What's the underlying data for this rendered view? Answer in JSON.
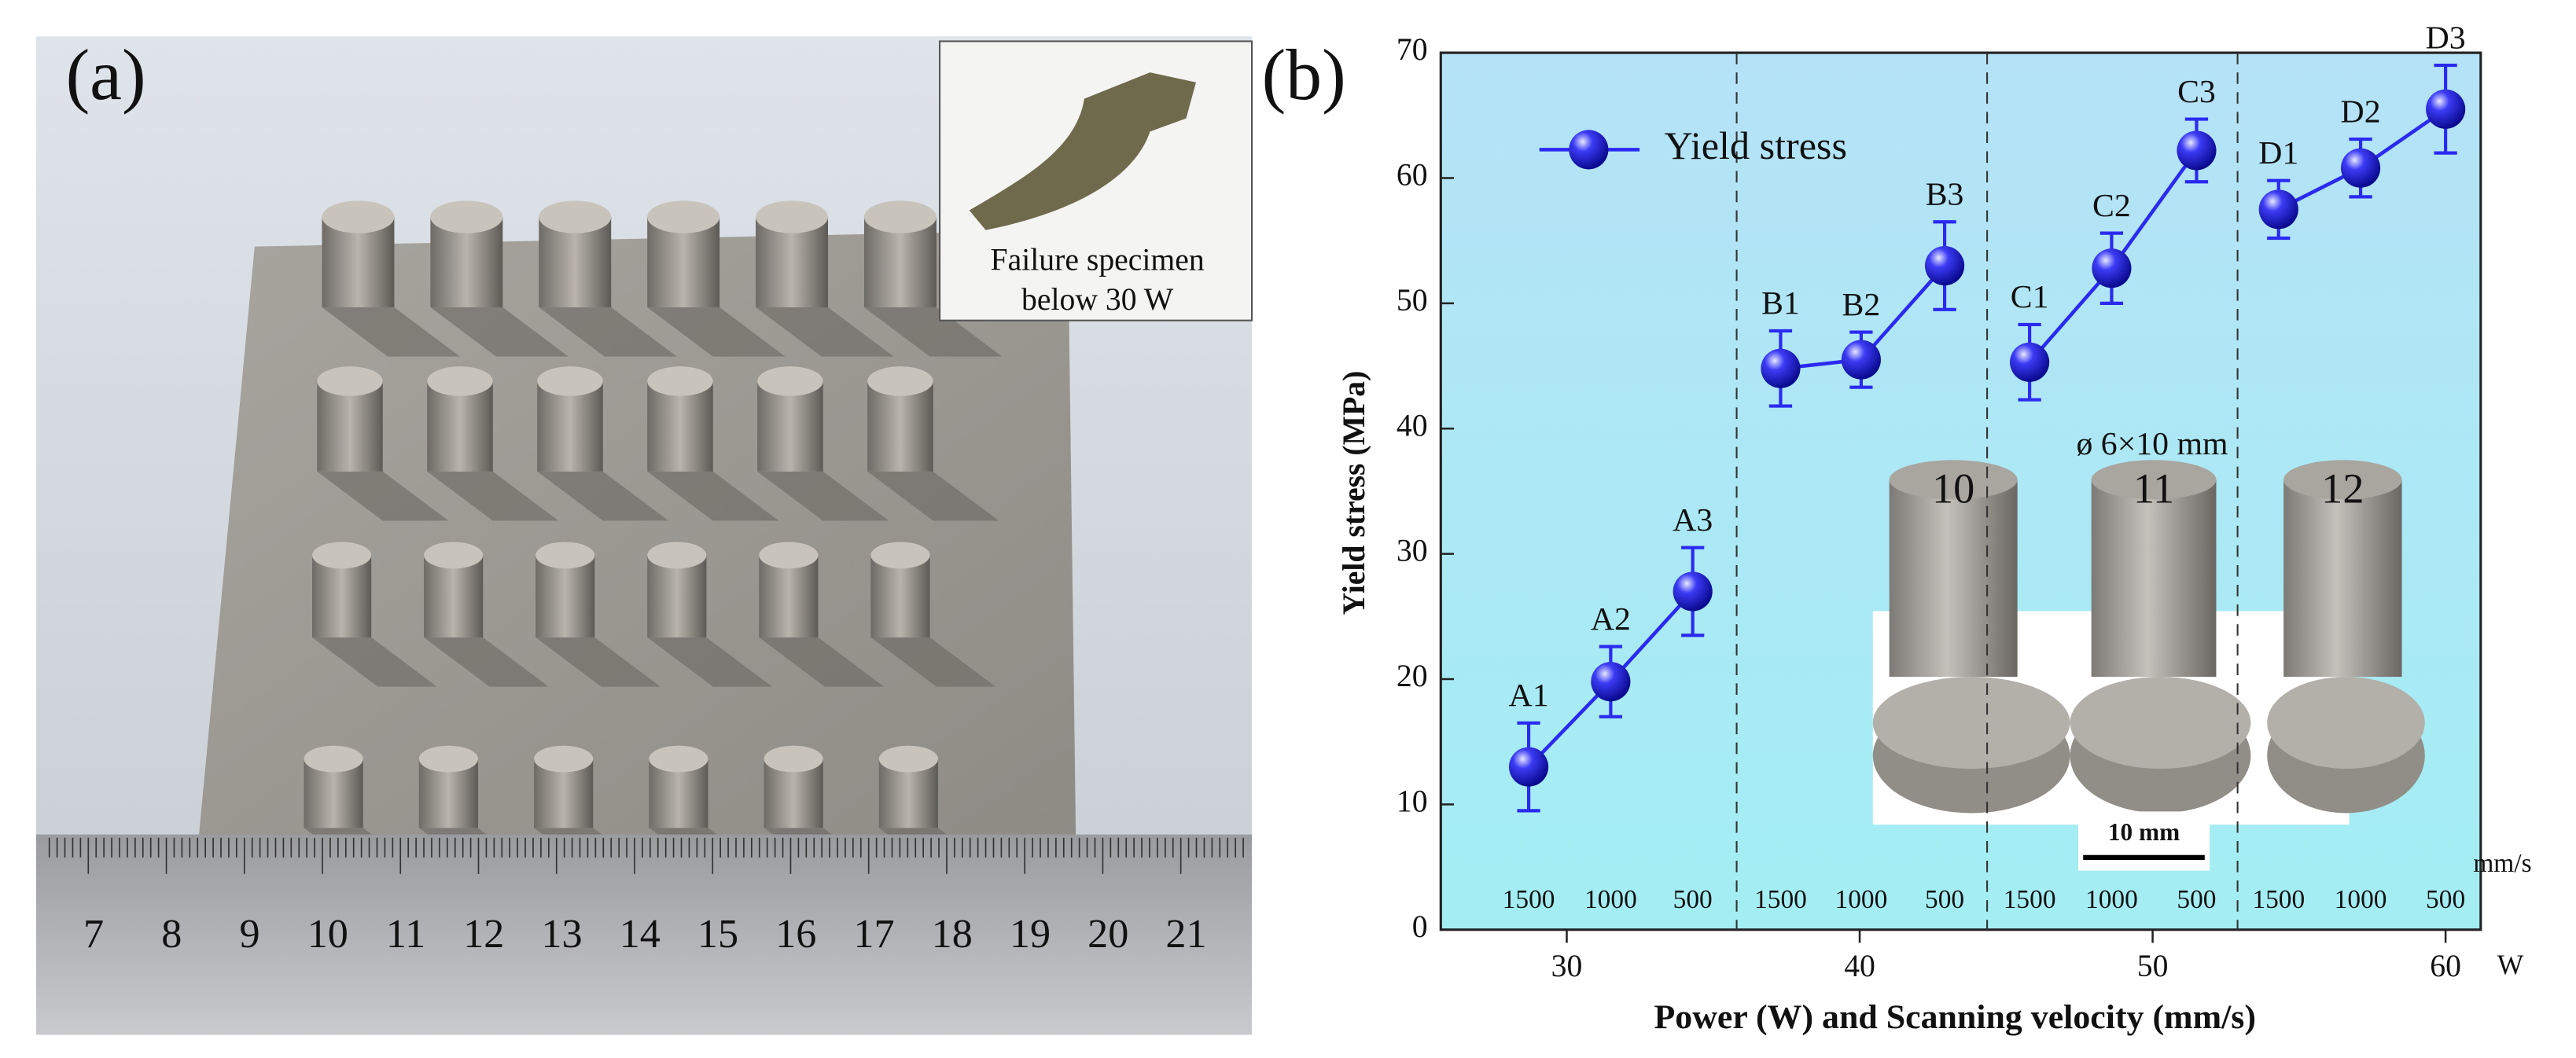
{
  "panel_labels": [
    "(a)",
    "(b)"
  ],
  "photo_a": {
    "inset_caption_lines": [
      "Failure specimen",
      "below 30 W"
    ],
    "ruler_numbers": [
      7,
      8,
      9,
      10,
      11,
      12,
      13,
      14,
      15,
      16,
      17,
      18,
      19,
      20,
      21
    ]
  },
  "chart_data": {
    "type": "line",
    "y_label": "Yield stress (MPa)",
    "x_label": "Power (W) and Scanning velocity (mm/s)",
    "x_unit": "W",
    "velocity_unit": "mm/s",
    "xlim": [
      25.7,
      61.2
    ],
    "xticks": [
      30,
      40,
      50,
      60
    ],
    "ylim": [
      0,
      70
    ],
    "yticks": [
      0,
      10,
      20,
      30,
      40,
      50,
      60,
      70
    ],
    "legend": "upper left",
    "series": [
      {
        "name": "Yield stress",
        "color": "#2a2af0",
        "x": [
          28.7,
          31.5,
          34.3,
          null,
          37.3,
          40.05,
          42.9,
          null,
          45.8,
          48.6,
          51.5,
          null,
          54.3,
          57.1,
          60
        ],
        "values": [
          13,
          19.8,
          27,
          null,
          44.8,
          45.5,
          53,
          null,
          45.3,
          52.8,
          62.2,
          null,
          57.5,
          60.8,
          65.5
        ],
        "errors": [
          3.5,
          2.8,
          3.5,
          null,
          3,
          2.2,
          3.5,
          null,
          3,
          2.8,
          2.5,
          null,
          2.3,
          2.3,
          3.5
        ]
      }
    ],
    "point_labels": [
      "A1",
      "A2",
      "A3",
      null,
      "B1",
      "B2",
      "B3",
      null,
      "C1",
      "C2",
      "C3",
      null,
      "D1",
      "D2",
      "D3"
    ],
    "velocity_labels": [
      1500,
      1000,
      500,
      null,
      1500,
      1000,
      500,
      null,
      1500,
      1000,
      500,
      null,
      1500,
      1000,
      500
    ],
    "inset": {
      "size_label": "ø 6×10 mm",
      "scale_label": "10 mm",
      "specimen_labels": [
        "10",
        "11",
        "12"
      ]
    }
  }
}
